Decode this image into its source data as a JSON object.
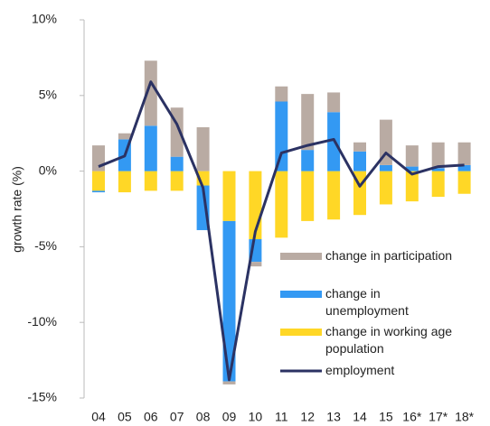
{
  "chart_data": {
    "type": "bar",
    "ylabel": "growth rate (%)",
    "categories": [
      "04",
      "05",
      "06",
      "07",
      "08",
      "09",
      "10",
      "11",
      "12",
      "13",
      "14",
      "15",
      "16*",
      "17*",
      "18*"
    ],
    "series": [
      {
        "name": "change in participation",
        "color": "#b9aba3",
        "values": [
          1.7,
          0.4,
          4.3,
          3.25,
          2.9,
          -0.2,
          -0.3,
          1.0,
          3.7,
          1.3,
          0.6,
          3.0,
          1.4,
          1.7,
          1.5
        ]
      },
      {
        "name": "change in unemployment",
        "color": "#3399f3",
        "values": [
          -0.1,
          2.1,
          3.0,
          0.95,
          -2.95,
          -10.6,
          -1.5,
          4.6,
          1.4,
          3.9,
          1.3,
          0.4,
          0.3,
          0.2,
          0.4
        ]
      },
      {
        "name": "change in working age population",
        "color": "#ffd726",
        "values": [
          -1.3,
          -1.4,
          -1.3,
          -1.3,
          -0.95,
          -3.3,
          -4.5,
          -4.4,
          -3.3,
          -3.2,
          -2.9,
          -2.2,
          -2.0,
          -1.7,
          -1.5
        ]
      },
      {
        "name": "employment",
        "type": "line",
        "color": "#2b3263",
        "values": [
          0.3,
          1.0,
          5.9,
          3.1,
          -1.1,
          -13.8,
          -4.0,
          1.2,
          1.7,
          2.1,
          -1.0,
          1.2,
          -0.2,
          0.3,
          0.4
        ]
      }
    ],
    "ylim": [
      -15,
      10
    ],
    "yticks": [
      {
        "value": -15,
        "label": "-15%"
      },
      {
        "value": -10,
        "label": "-10%"
      },
      {
        "value": -5,
        "label": "-5%"
      },
      {
        "value": 0,
        "label": "0%"
      },
      {
        "value": 5,
        "label": "5%"
      },
      {
        "value": 10,
        "label": "10%"
      }
    ]
  }
}
